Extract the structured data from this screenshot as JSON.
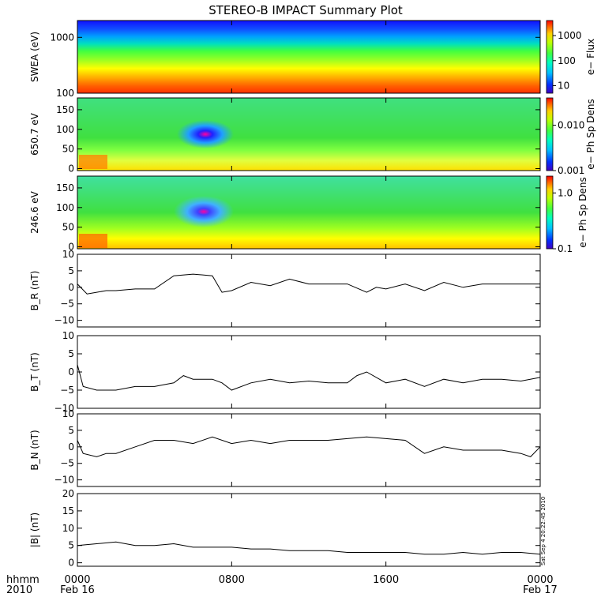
{
  "title": "STEREO-B IMPACT Summary Plot",
  "stamp": "Sat Sep  4 20:22:45 2010",
  "colors": {
    "line": "#000000",
    "frame": "#000000"
  },
  "chart_data": [
    {
      "type": "heatmap",
      "ylabel": "SWEA (eV)",
      "yscale": "log",
      "ylim": [
        100,
        2000
      ],
      "yticks": [
        {
          "v": 100,
          "label": "100"
        },
        {
          "v": 1000,
          "label": "1000"
        }
      ],
      "colorbar": {
        "label": "e−  Flux",
        "scale": "log",
        "range": [
          5,
          4000
        ],
        "ticks": [
          {
            "v": 10,
            "label": "10"
          },
          {
            "v": 100,
            "label": "100"
          },
          {
            "v": 1000,
            "label": "1000"
          }
        ]
      }
    },
    {
      "type": "heatmap",
      "ylabel": "650.7 eV",
      "ylim": [
        -5,
        180
      ],
      "yticks": [
        {
          "v": 0,
          "label": "0"
        },
        {
          "v": 50,
          "label": "50"
        },
        {
          "v": 100,
          "label": "100"
        },
        {
          "v": 150,
          "label": "150"
        }
      ],
      "colorbar": {
        "label": "e−  Ph Sp Dens",
        "scale": "log",
        "range": [
          0.001,
          0.04
        ],
        "ticks": [
          {
            "v": 0.001,
            "label": "0.001"
          },
          {
            "v": 0.01,
            "label": "0.010"
          }
        ]
      }
    },
    {
      "type": "heatmap",
      "ylabel": "246.6 eV",
      "ylim": [
        -5,
        180
      ],
      "yticks": [
        {
          "v": 0,
          "label": "0"
        },
        {
          "v": 50,
          "label": "50"
        },
        {
          "v": 100,
          "label": "100"
        },
        {
          "v": 150,
          "label": "150"
        }
      ],
      "colorbar": {
        "label": "e−  Ph Sp Dens",
        "scale": "log",
        "range": [
          0.1,
          2
        ],
        "ticks": [
          {
            "v": 0.1,
            "label": "0.1"
          },
          {
            "v": 1,
            "label": "1.0"
          }
        ]
      }
    },
    {
      "type": "line",
      "ylabel": "B_R (nT)",
      "ylim": [
        -12,
        10
      ],
      "yticks": [
        {
          "v": -10,
          "label": "−10"
        },
        {
          "v": -5,
          "label": "−5"
        },
        {
          "v": 0,
          "label": "0"
        },
        {
          "v": 5,
          "label": "5"
        },
        {
          "v": 10,
          "label": "10"
        }
      ],
      "x": [
        0,
        0.5,
        1,
        1.5,
        2,
        3,
        4,
        5,
        6,
        7,
        7.5,
        8,
        9,
        10,
        11,
        12,
        13,
        14,
        15,
        15.5,
        16,
        17,
        18,
        19,
        20,
        21,
        22,
        23,
        24
      ],
      "y": [
        1,
        -2,
        -1.5,
        -1,
        -1,
        -0.5,
        -0.5,
        3.5,
        4,
        3.5,
        -1.5,
        -1,
        1.5,
        0.5,
        2.5,
        1,
        1,
        1,
        -1.5,
        0,
        -0.5,
        1,
        -1,
        1.5,
        0,
        1,
        1,
        1,
        1
      ]
    },
    {
      "type": "line",
      "ylabel": "B_T (nT)",
      "ylim": [
        -10,
        10
      ],
      "yticks": [
        {
          "v": -10,
          "label": "−10"
        },
        {
          "v": -5,
          "label": "−5"
        },
        {
          "v": 0,
          "label": "0"
        },
        {
          "v": 5,
          "label": "5"
        },
        {
          "v": 10,
          "label": "10"
        }
      ],
      "x": [
        0,
        0.3,
        1,
        2,
        3,
        4,
        5,
        5.5,
        6,
        7,
        7.5,
        8,
        9,
        10,
        11,
        12,
        13,
        14,
        14.5,
        15,
        16,
        17,
        18,
        19,
        20,
        21,
        22,
        23,
        24
      ],
      "y": [
        2,
        -4,
        -5,
        -5,
        -4,
        -4,
        -3,
        -1,
        -2,
        -2,
        -3,
        -5,
        -3,
        -2,
        -3,
        -2.5,
        -3,
        -3,
        -1,
        0,
        -3,
        -2,
        -4,
        -2,
        -3,
        -2,
        -2,
        -2.5,
        -1.5
      ]
    },
    {
      "type": "line",
      "ylabel": "B_N (nT)",
      "ylim": [
        -12,
        10
      ],
      "yticks": [
        {
          "v": -10,
          "label": "−10"
        },
        {
          "v": -5,
          "label": "−5"
        },
        {
          "v": 0,
          "label": "0"
        },
        {
          "v": 5,
          "label": "5"
        },
        {
          "v": 10,
          "label": "10"
        }
      ],
      "x": [
        0,
        0.3,
        1,
        1.5,
        2,
        3,
        4,
        5,
        6,
        7,
        8,
        9,
        10,
        11,
        12,
        13,
        14,
        15,
        16,
        17,
        18,
        19,
        20,
        21,
        22,
        23,
        23.5,
        24
      ],
      "y": [
        2,
        -2,
        -3,
        -2,
        -2,
        0,
        2,
        2,
        1,
        3,
        1,
        2,
        1,
        2,
        2,
        2,
        2.5,
        3,
        2.5,
        2,
        -2,
        0,
        -1,
        -1,
        -1,
        -2,
        -3,
        0
      ]
    },
    {
      "type": "line",
      "ylabel": "|B| (nT)",
      "ylim": [
        -1,
        20
      ],
      "yticks": [
        {
          "v": 0,
          "label": "0"
        },
        {
          "v": 5,
          "label": "5"
        },
        {
          "v": 10,
          "label": "10"
        },
        {
          "v": 15,
          "label": "15"
        },
        {
          "v": 20,
          "label": "20"
        }
      ],
      "x": [
        0,
        1,
        2,
        3,
        4,
        5,
        6,
        7,
        8,
        9,
        10,
        11,
        12,
        13,
        14,
        15,
        16,
        17,
        18,
        19,
        20,
        21,
        22,
        23,
        24
      ],
      "y": [
        5,
        5.5,
        6,
        5,
        5,
        5.5,
        4.5,
        4.5,
        4.5,
        4,
        4,
        3.5,
        3.5,
        3.5,
        3,
        3,
        3,
        3,
        2.5,
        2.5,
        3,
        2.5,
        3,
        3,
        2.5
      ]
    }
  ],
  "xaxis": {
    "range": [
      0,
      24
    ],
    "ticks": [
      {
        "v": 0,
        "label": "0000",
        "date": "Feb 16"
      },
      {
        "v": 8,
        "label": "0800",
        "date": ""
      },
      {
        "v": 16,
        "label": "1600",
        "date": ""
      },
      {
        "v": 24,
        "label": "0000",
        "date": "Feb 17"
      }
    ],
    "unit_label": "hhmm",
    "year_label": "2010"
  }
}
